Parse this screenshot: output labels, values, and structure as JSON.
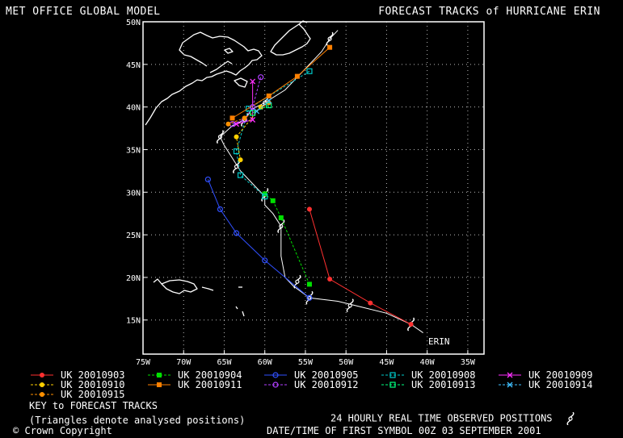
{
  "header": {
    "left_title": "MET OFFICE GLOBAL MODEL",
    "right_title": "FORECAST TRACKS of HURRICANE ERIN"
  },
  "map": {
    "lon_range": [
      -75,
      -33
    ],
    "lat_range": [
      11,
      50
    ],
    "lat_ticks": [
      "50N",
      "45N",
      "40N",
      "35N",
      "30N",
      "25N",
      "20N",
      "15N"
    ],
    "lon_ticks": [
      "75W",
      "70W",
      "65W",
      "60W",
      "55W",
      "50W",
      "45W",
      "40W",
      "35W"
    ],
    "storm_label": "ERIN"
  },
  "observed_track": [
    [
      -40.5,
      13.5
    ],
    [
      -42,
      14.5
    ],
    [
      -45,
      15.8
    ],
    [
      -48,
      16.5
    ],
    [
      -51,
      17.2
    ],
    [
      -54.5,
      17.6
    ],
    [
      -56.5,
      19
    ],
    [
      -57.5,
      20
    ],
    [
      -58,
      22.5
    ],
    [
      -58,
      24.5
    ],
    [
      -58,
      26
    ],
    [
      -59,
      27.5
    ],
    [
      -60,
      28.5
    ],
    [
      -60,
      29.5
    ],
    [
      -61.5,
      31
    ],
    [
      -63,
      32.5
    ],
    [
      -64,
      34
    ],
    [
      -65,
      35.5
    ],
    [
      -65.5,
      36.5
    ],
    [
      -64,
      37.8
    ],
    [
      -62.5,
      38.5
    ],
    [
      -61.5,
      39.8
    ],
    [
      -60,
      40.5
    ],
    [
      -57.5,
      42
    ],
    [
      -55,
      44.5
    ],
    [
      -53,
      46.5
    ],
    [
      -52,
      48
    ],
    [
      -51,
      49
    ]
  ],
  "observed_symbols": [
    [
      -42,
      14.5
    ],
    [
      -49.5,
      16.7
    ],
    [
      -54.5,
      17.6
    ],
    [
      -56,
      19.5
    ],
    [
      -58,
      26
    ],
    [
      -60,
      29.7
    ],
    [
      -63.5,
      33
    ],
    [
      -65.5,
      36.5
    ],
    [
      -62.5,
      38.5
    ],
    [
      -60,
      40.5
    ],
    [
      -52,
      48
    ]
  ],
  "tracks": [
    {
      "color": "#ff3030",
      "marker": "filled-circle",
      "dash": "",
      "points": [
        [
          -54.5,
          28
        ],
        [
          -52,
          19.8
        ],
        [
          -47,
          17
        ],
        [
          -42,
          14.5
        ]
      ]
    },
    {
      "color": "#00e000",
      "marker": "filled-square",
      "dash": "3,2",
      "points": [
        [
          -54.5,
          19.2
        ],
        [
          -58,
          27
        ],
        [
          -59,
          29
        ],
        [
          -60,
          29.8
        ]
      ]
    },
    {
      "color": "#3050ff",
      "marker": "open-circle",
      "dash": "",
      "points": [
        [
          -67,
          31.5
        ],
        [
          -65.5,
          28
        ],
        [
          -63.5,
          25.2
        ],
        [
          -60,
          22
        ],
        [
          -54.5,
          17.6
        ]
      ]
    },
    {
      "color": "#00c8c8",
      "marker": "open-square",
      "dash": "3,2",
      "points": [
        [
          -54.5,
          44.2
        ],
        [
          -62,
          39.8
        ],
        [
          -63.5,
          34.8
        ],
        [
          -63,
          32
        ],
        [
          -60,
          29.5
        ]
      ]
    },
    {
      "color": "#ff30ff",
      "marker": "cross",
      "dash": "",
      "points": [
        [
          -61.5,
          43
        ],
        [
          -61.5,
          38.5
        ],
        [
          -63.5,
          38
        ]
      ]
    },
    {
      "color": "#ffd000",
      "marker": "filled-circle",
      "dash": "3,2",
      "points": [
        [
          -60.5,
          40
        ],
        [
          -63.5,
          36.5
        ],
        [
          -63,
          33.8
        ]
      ]
    },
    {
      "color": "#ff8000",
      "marker": "filled-square",
      "dash": "",
      "points": [
        [
          -52,
          47
        ],
        [
          -56,
          43.6
        ],
        [
          -59.5,
          41.3
        ],
        [
          -64,
          38.7
        ]
      ]
    },
    {
      "color": "#b040ff",
      "marker": "open-circle",
      "dash": "3,2",
      "points": [
        [
          -60.5,
          43.5
        ],
        [
          -61.5,
          40
        ],
        [
          -62.5,
          38.5
        ],
        [
          -64,
          38
        ]
      ]
    },
    {
      "color": "#ff9000",
      "marker": "filled-circle",
      "dash": "3,2",
      "points": [
        [
          -59.5,
          40.5
        ],
        [
          -62.5,
          38.7
        ],
        [
          -64.5,
          38
        ]
      ]
    },
    {
      "color": "#00ff80",
      "marker": "open-square",
      "dash": "3,2",
      "points": [
        [
          -59.5,
          40.2
        ],
        [
          -61.5,
          39.3
        ]
      ]
    },
    {
      "color": "#40c0ff",
      "marker": "cross",
      "dash": "3,2",
      "points": [
        [
          -59.5,
          40.7
        ],
        [
          -61,
          39.5
        ]
      ]
    }
  ],
  "legend": [
    {
      "label": "UK 20010903",
      "color": "#ff3030",
      "marker": "filled-circle",
      "dash": ""
    },
    {
      "label": "UK 20010904",
      "color": "#00e000",
      "marker": "filled-square",
      "dash": "3,2"
    },
    {
      "label": "UK 20010905",
      "color": "#3050ff",
      "marker": "open-circle",
      "dash": ""
    },
    {
      "label": "UK 20010908",
      "color": "#00c8c8",
      "marker": "open-square",
      "dash": "3,2"
    },
    {
      "label": "UK 20010909",
      "color": "#ff30ff",
      "marker": "cross",
      "dash": ""
    },
    {
      "label": "UK 20010910",
      "color": "#ffd000",
      "marker": "filled-circle",
      "dash": "3,2"
    },
    {
      "label": "UK 20010911",
      "color": "#ff8000",
      "marker": "filled-square",
      "dash": ""
    },
    {
      "label": "UK 20010912",
      "color": "#b040ff",
      "marker": "open-circle",
      "dash": "3,2"
    },
    {
      "label": "UK 20010913",
      "color": "#00ff80",
      "marker": "open-square",
      "dash": "3,2"
    },
    {
      "label": "UK 20010914",
      "color": "#40c0ff",
      "marker": "cross",
      "dash": "3,2"
    },
    {
      "label": "UK 20010915",
      "color": "#ff9000",
      "marker": "filled-circle",
      "dash": "3,2"
    }
  ],
  "footer": {
    "key_title": "KEY to FORECAST TRACKS",
    "triangles_note": "(Triangles denote analysed positions)",
    "copyright": "Crown Copyright",
    "copyright_symbol": "©",
    "observed_note": "24 HOURLY REAL TIME OBSERVED POSITIONS",
    "observed_icon": "hurricane-symbol-icon",
    "datetime_note": "DATE/TIME OF FIRST SYMBOL 00Z 03 SEPTEMBER 2001"
  }
}
